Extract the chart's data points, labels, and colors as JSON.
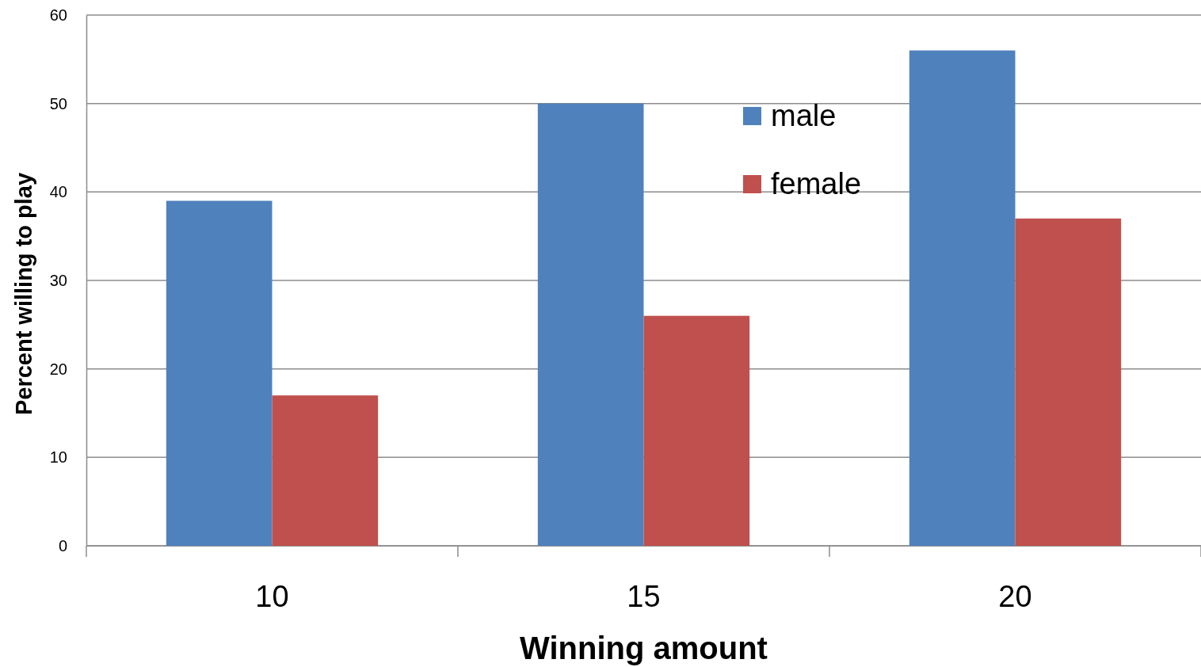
{
  "chart_data": {
    "type": "bar",
    "xlabel": "Winning amount",
    "ylabel": "Percent willing to play",
    "categories": [
      "10",
      "15",
      "20"
    ],
    "series": [
      {
        "name": "male",
        "color": "#4f81bd",
        "values": [
          39,
          50,
          56
        ]
      },
      {
        "name": "female",
        "color": "#c0504d",
        "values": [
          17,
          26,
          37
        ]
      }
    ],
    "ylim": [
      0,
      60
    ],
    "yticks": [
      0,
      10,
      20,
      30,
      40,
      50,
      60
    ],
    "grid": "y",
    "legend": "top right"
  }
}
